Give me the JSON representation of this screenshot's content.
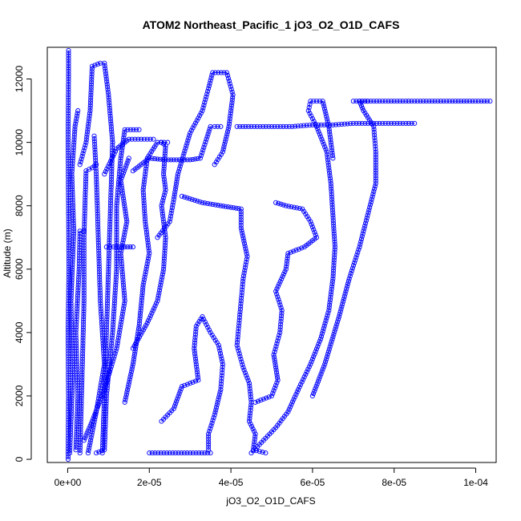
{
  "chart_data": {
    "type": "scatter",
    "title": "ATOM2 Northeast_Pacific_1 jO3_O2_O1D_CAFS",
    "xlabel": "jO3_O2_O1D_CAFS",
    "ylabel": "Altitude (m)",
    "xlim": [
      -5e-06,
      0.000105
    ],
    "ylim": [
      -100,
      13000
    ],
    "xticks": [
      0,
      2e-05,
      4e-05,
      6e-05,
      8e-05,
      0.0001
    ],
    "xtick_labels": [
      "0e+00",
      "2e-05",
      "4e-05",
      "6e-05",
      "8e-05",
      "1e-04"
    ],
    "yticks": [
      0,
      2000,
      4000,
      6000,
      8000,
      10000,
      12000
    ],
    "ytick_labels": [
      "0",
      "2000",
      "4000",
      "6000",
      "8000",
      "10000",
      "12000"
    ],
    "marker": "open-circle",
    "color": "#0000ff",
    "grid": false,
    "legend": "none",
    "series": [
      {
        "values": [
          [
            1e-07,
            0
          ],
          [
            2e-07,
            2000
          ],
          [
            1e-07,
            4000
          ],
          [
            3e-07,
            6000
          ],
          [
            2e-07,
            8000
          ],
          [
            1e-07,
            10000
          ],
          [
            2e-07,
            12000
          ],
          [
            2e-07,
            12900
          ]
        ]
      },
      {
        "values": [
          [
            5e-07,
            200
          ],
          [
            1.2e-06,
            2500
          ],
          [
            8e-07,
            5000
          ],
          [
            1.5e-06,
            7200
          ],
          [
            1e-06,
            9000
          ],
          [
            1.8e-06,
            10500
          ],
          [
            2.5e-06,
            11000
          ]
        ]
      },
      {
        "values": [
          [
            2e-06,
            300
          ],
          [
            2.5e-06,
            2000
          ],
          [
            2e-06,
            4000
          ],
          [
            2.8e-06,
            6000
          ],
          [
            3e-06,
            7200
          ],
          [
            4e-06,
            7200
          ]
        ]
      },
      {
        "values": [
          [
            3e-06,
            200
          ],
          [
            3.5e-06,
            2500
          ],
          [
            4e-06,
            5000
          ],
          [
            4e-06,
            7000
          ],
          [
            4.5e-06,
            9100
          ],
          [
            6e-06,
            9200
          ],
          [
            7e-06,
            9300
          ]
        ]
      },
      {
        "values": [
          [
            3e-06,
            9300
          ],
          [
            4.5e-06,
            10000
          ],
          [
            5.5e-06,
            11000
          ],
          [
            6e-06,
            12400
          ],
          [
            8e-06,
            12500
          ],
          [
            9e-06,
            12500
          ],
          [
            1e-05,
            11500
          ],
          [
            1.1e-05,
            10000
          ],
          [
            1.05e-05,
            8000
          ],
          [
            1e-05,
            6000
          ],
          [
            9.5e-06,
            4000
          ],
          [
            9e-06,
            2000
          ],
          [
            8.5e-06,
            200
          ]
        ]
      },
      {
        "values": [
          [
            5e-06,
            200
          ],
          [
            7e-06,
            1500
          ],
          [
            9e-06,
            3000
          ],
          [
            8e-06,
            5000
          ],
          [
            7.5e-06,
            7000
          ],
          [
            7e-06,
            9000
          ],
          [
            6.5e-06,
            10200
          ]
        ]
      },
      {
        "values": [
          [
            7e-06,
            200
          ],
          [
            9e-06,
            300
          ],
          [
            9.5e-06,
            2000
          ],
          [
            1.1e-05,
            4000
          ],
          [
            1.2e-05,
            6000
          ],
          [
            1.2e-05,
            8000
          ],
          [
            1.3e-05,
            9500
          ],
          [
            1.4e-05,
            10400
          ],
          [
            1.75e-05,
            10400
          ]
        ]
      },
      {
        "values": [
          [
            4e-06,
            600
          ],
          [
            6e-06,
            1200
          ],
          [
            9e-06,
            2200
          ],
          [
            1.2e-05,
            3500
          ],
          [
            1.4e-05,
            5000
          ],
          [
            1.3e-05,
            6500
          ],
          [
            1.45e-05,
            7500
          ],
          [
            1.3e-05,
            8800
          ],
          [
            1.5e-05,
            9500
          ]
        ]
      },
      {
        "values": [
          [
            9e-06,
            9000
          ],
          [
            1.2e-05,
            9800
          ],
          [
            1.5e-05,
            10100
          ],
          [
            1.8e-05,
            10100
          ],
          [
            2.1e-05,
            10100
          ]
        ]
      },
      {
        "values": [
          [
            9.5e-06,
            6700
          ],
          [
            1.2e-05,
            6700
          ],
          [
            1.6e-05,
            6700
          ]
        ]
      },
      {
        "values": [
          [
            1.4e-05,
            1800
          ],
          [
            1.6e-05,
            3000
          ],
          [
            1.75e-05,
            4200
          ],
          [
            1.85e-05,
            5500
          ],
          [
            2e-05,
            6500
          ],
          [
            1.9e-05,
            7500
          ],
          [
            1.85e-05,
            8500
          ],
          [
            1.95e-05,
            9500
          ],
          [
            2.2e-05,
            10000
          ],
          [
            2.45e-05,
            10000
          ]
        ]
      },
      {
        "values": [
          [
            1.6e-05,
            3500
          ],
          [
            1.95e-05,
            4300
          ],
          [
            2.2e-05,
            5000
          ],
          [
            2.35e-05,
            6000
          ],
          [
            2.4e-05,
            7000
          ],
          [
            2.3e-05,
            8000
          ],
          [
            2.4e-05,
            8500
          ],
          [
            2.35e-05,
            9000
          ],
          [
            2.4e-05,
            9900
          ],
          [
            2.3e-05,
            10000
          ]
        ]
      },
      {
        "values": [
          [
            1.6e-05,
            9100
          ],
          [
            1.8e-05,
            9300
          ],
          [
            2e-05,
            9500
          ],
          [
            2.4e-05,
            9450
          ],
          [
            3e-05,
            9450
          ],
          [
            3.25e-05,
            9500
          ],
          [
            3.4e-05,
            10100
          ],
          [
            3.5e-05,
            10500
          ],
          [
            3.6e-05,
            10500
          ],
          [
            3.75e-05,
            10500
          ]
        ]
      },
      {
        "values": [
          [
            2.2e-05,
            7000
          ],
          [
            2.5e-05,
            7500
          ],
          [
            2.6e-05,
            8200
          ],
          [
            2.7e-05,
            9000
          ],
          [
            3e-05,
            10300
          ],
          [
            3.3e-05,
            11000
          ],
          [
            3.45e-05,
            11700
          ],
          [
            3.55e-05,
            12200
          ],
          [
            3.9e-05,
            12200
          ],
          [
            4.05e-05,
            11500
          ],
          [
            3.95e-05,
            10500
          ],
          [
            3.8e-05,
            9700
          ],
          [
            3.6e-05,
            9300
          ]
        ]
      },
      {
        "values": [
          [
            2e-05,
            200
          ],
          [
            2.5e-05,
            200
          ],
          [
            3e-05,
            200
          ],
          [
            3.5e-05,
            200
          ]
        ]
      },
      {
        "values": [
          [
            2.3e-05,
            1200
          ],
          [
            2.6e-05,
            1600
          ],
          [
            2.8e-05,
            2300
          ],
          [
            3.2e-05,
            2500
          ],
          [
            3.1e-05,
            3500
          ],
          [
            3.15e-05,
            4200
          ],
          [
            3.3e-05,
            4500
          ],
          [
            3.5e-05,
            4000
          ],
          [
            3.7e-05,
            3600
          ],
          [
            3.8e-05,
            3000
          ],
          [
            3.75e-05,
            2200
          ],
          [
            3.6e-05,
            1400
          ],
          [
            3.45e-05,
            800
          ],
          [
            3.45e-05,
            300
          ]
        ]
      },
      {
        "values": [
          [
            2.8e-05,
            8300
          ],
          [
            3.3e-05,
            8100
          ],
          [
            3.75e-05,
            8000
          ],
          [
            4.25e-05,
            7900
          ],
          [
            4.25e-05,
            7300
          ],
          [
            4.4e-05,
            6400
          ],
          [
            4.3e-05,
            5700
          ],
          [
            4.25e-05,
            5000
          ],
          [
            4.2e-05,
            4300
          ],
          [
            4.15e-05,
            3600
          ],
          [
            4.3e-05,
            2900
          ],
          [
            4.45e-05,
            2400
          ],
          [
            4.5e-05,
            1800
          ],
          [
            4.45e-05,
            1200
          ],
          [
            4.6e-05,
            800
          ],
          [
            4.55e-05,
            300
          ],
          [
            4.85e-05,
            200
          ]
        ]
      },
      {
        "values": [
          [
            4.6e-05,
            1800
          ],
          [
            5e-05,
            2000
          ],
          [
            5.15e-05,
            2500
          ],
          [
            5.05e-05,
            3300
          ],
          [
            5.2e-05,
            4000
          ],
          [
            5.25e-05,
            4700
          ],
          [
            5.1e-05,
            5300
          ],
          [
            5.35e-05,
            6000
          ],
          [
            5.4e-05,
            6500
          ],
          [
            5.8e-05,
            6700
          ],
          [
            6.1e-05,
            7000
          ],
          [
            5.95e-05,
            7500
          ],
          [
            5.75e-05,
            7900
          ],
          [
            5.35e-05,
            8000
          ],
          [
            5.1e-05,
            8100
          ]
        ]
      },
      {
        "values": [
          [
            4.5e-05,
            200
          ],
          [
            4.8e-05,
            600
          ],
          [
            5.1e-05,
            1000
          ],
          [
            5.4e-05,
            1500
          ],
          [
            5.65e-05,
            2200
          ],
          [
            5.95e-05,
            3000
          ],
          [
            6.2e-05,
            3800
          ],
          [
            6.4e-05,
            4700
          ],
          [
            6.5e-05,
            5700
          ],
          [
            6.55e-05,
            6700
          ],
          [
            6.5e-05,
            7700
          ],
          [
            6.45e-05,
            8700
          ],
          [
            6.35e-05,
            9700
          ],
          [
            6.1e-05,
            10500
          ],
          [
            5.9e-05,
            11000
          ],
          [
            5.95e-05,
            11300
          ],
          [
            6.25e-05,
            11300
          ],
          [
            6.4e-05,
            10500
          ],
          [
            6.5e-05,
            9500
          ]
        ]
      },
      {
        "values": [
          [
            6e-05,
            2000
          ],
          [
            6.3e-05,
            3000
          ],
          [
            6.65e-05,
            4500
          ],
          [
            6.9e-05,
            5700
          ],
          [
            7.15e-05,
            6700
          ],
          [
            7.35e-05,
            7700
          ],
          [
            7.55e-05,
            8700
          ],
          [
            7.55e-05,
            9700
          ],
          [
            7.5e-05,
            10500
          ],
          [
            7.25e-05,
            11000
          ],
          [
            7.15e-05,
            11300
          ],
          [
            7.35e-05,
            11300
          ]
        ]
      },
      {
        "values": [
          [
            4.15e-05,
            10500
          ],
          [
            4.5e-05,
            10500
          ],
          [
            5e-05,
            10500
          ],
          [
            5.5e-05,
            10500
          ],
          [
            6e-05,
            10550
          ],
          [
            6.5e-05,
            10550
          ],
          [
            7e-05,
            10600
          ],
          [
            7.5e-05,
            10600
          ],
          [
            8e-05,
            10600
          ],
          [
            8.5e-05,
            10600
          ]
        ]
      },
      {
        "values": [
          [
            7e-05,
            11300
          ],
          [
            7.5e-05,
            11300
          ],
          [
            8e-05,
            11300
          ],
          [
            8.5e-05,
            11300
          ],
          [
            9e-05,
            11300
          ],
          [
            9.5e-05,
            11300
          ],
          [
            9.85e-05,
            11300
          ],
          [
            0.0001035,
            11300
          ]
        ]
      }
    ]
  }
}
